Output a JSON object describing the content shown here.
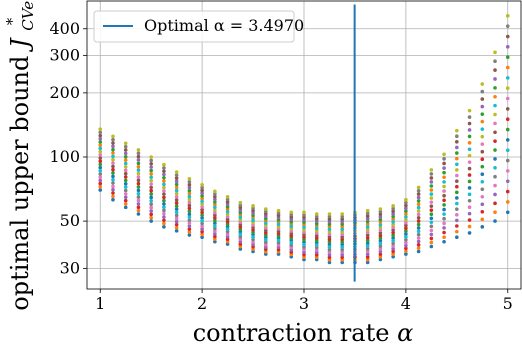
{
  "chart_data": {
    "type": "scatter",
    "xlabel_text": "contraction rate",
    "xlabel_symbol": "α",
    "ylabel_text": "optimal upper bound",
    "ylabel_symbol": "J",
    "ylabel_sub": "CVe",
    "ylabel_sup": "*",
    "xlim": [
      0.87,
      5.13
    ],
    "ylim": [
      24,
      540
    ],
    "yscale": "log",
    "grid": true,
    "x_ticks": [
      1,
      2,
      3,
      4,
      5
    ],
    "x_tick_labels": [
      "1",
      "2",
      "3",
      "4",
      "5"
    ],
    "y_ticks": [
      30,
      50,
      100,
      200,
      300,
      400
    ],
    "y_tick_labels": [
      "30",
      "50",
      "100",
      "200",
      "300",
      "400"
    ],
    "legend_label": "Optimal α = 3.4970",
    "legend_position": "top-left",
    "optimal_alpha": 3.497,
    "optimal_line_range": [
      26,
      520
    ],
    "optimal_line_color": "#1f77b4",
    "x": [
      1.0,
      1.125,
      1.25,
      1.375,
      1.5,
      1.625,
      1.75,
      1.875,
      2.0,
      2.125,
      2.25,
      2.375,
      2.5,
      2.625,
      2.75,
      2.875,
      3.0,
      3.125,
      3.25,
      3.375,
      3.5,
      3.625,
      3.75,
      3.875,
      4.0,
      4.125,
      4.25,
      4.375,
      4.5,
      4.625,
      4.75,
      4.875,
      5.0
    ],
    "y_max": [
      135,
      125,
      116,
      108,
      100,
      92,
      85,
      79,
      74,
      69,
      65,
      61,
      59,
      57,
      56,
      55,
      55,
      54,
      54,
      54,
      55,
      56,
      57,
      59,
      63,
      72,
      87,
      103,
      133,
      165,
      220,
      310,
      460
    ],
    "y_min": [
      70,
      63,
      58,
      54,
      50,
      47,
      45,
      43,
      42,
      40,
      39,
      37,
      36,
      35,
      35,
      34,
      33,
      33,
      32,
      32,
      32,
      32,
      33,
      34,
      35,
      36,
      38,
      40,
      42,
      44,
      47,
      50,
      55
    ],
    "series_count": 10,
    "series_colors": [
      "#1f77b4",
      "#ff7f0e",
      "#2ca02c",
      "#d62728",
      "#9467bd",
      "#8c564b",
      "#e377c2",
      "#7f7f7f",
      "#bcbd22",
      "#17becf"
    ]
  }
}
